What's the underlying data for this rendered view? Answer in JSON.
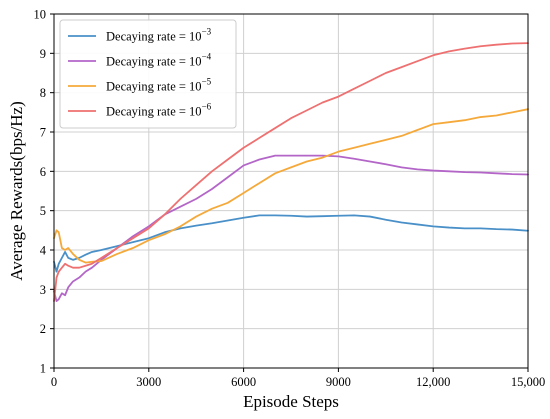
{
  "chart_data": {
    "type": "line",
    "xlabel": "Episode Steps",
    "ylabel": "Average Rewards(bps/Hz)",
    "xlim": [
      0,
      15000
    ],
    "ylim": [
      1,
      10
    ],
    "x_ticks": [
      0,
      3000,
      6000,
      9000,
      12000,
      15000
    ],
    "x_tick_labels": [
      "0",
      "3000",
      "6000",
      "9000",
      "12,000",
      "15,000"
    ],
    "y_ticks": [
      1,
      2,
      3,
      4,
      5,
      6,
      7,
      8,
      9,
      10
    ],
    "y_tick_labels": [
      "1",
      "2",
      "3",
      "4",
      "5",
      "6",
      "7",
      "8",
      "9",
      "10"
    ],
    "grid": true,
    "legend_position": "top-left",
    "series": [
      {
        "name_prefix": "Decaying rate = 10",
        "name_exponent": "−3",
        "color": "#4a90c8",
        "points": [
          [
            0,
            3.7
          ],
          [
            80,
            3.45
          ],
          [
            150,
            3.65
          ],
          [
            250,
            3.8
          ],
          [
            350,
            3.95
          ],
          [
            450,
            3.8
          ],
          [
            600,
            3.75
          ],
          [
            800,
            3.8
          ],
          [
            1000,
            3.88
          ],
          [
            1200,
            3.95
          ],
          [
            1500,
            4.0
          ],
          [
            2000,
            4.1
          ],
          [
            2500,
            4.2
          ],
          [
            3000,
            4.3
          ],
          [
            3500,
            4.45
          ],
          [
            4000,
            4.55
          ],
          [
            4500,
            4.62
          ],
          [
            5000,
            4.68
          ],
          [
            5500,
            4.75
          ],
          [
            6000,
            4.82
          ],
          [
            6500,
            4.88
          ],
          [
            7000,
            4.88
          ],
          [
            7500,
            4.87
          ],
          [
            8000,
            4.85
          ],
          [
            8500,
            4.86
          ],
          [
            9000,
            4.87
          ],
          [
            9500,
            4.88
          ],
          [
            10000,
            4.85
          ],
          [
            10500,
            4.77
          ],
          [
            11000,
            4.7
          ],
          [
            11500,
            4.65
          ],
          [
            12000,
            4.6
          ],
          [
            12500,
            4.57
          ],
          [
            13000,
            4.55
          ],
          [
            13500,
            4.55
          ],
          [
            14000,
            4.53
          ],
          [
            14500,
            4.52
          ],
          [
            15000,
            4.49
          ]
        ]
      },
      {
        "name_prefix": "Decaying rate = 10",
        "name_exponent": "−4",
        "color": "#b366c8",
        "points": [
          [
            0,
            2.95
          ],
          [
            80,
            2.7
          ],
          [
            150,
            2.75
          ],
          [
            250,
            2.9
          ],
          [
            350,
            2.85
          ],
          [
            450,
            3.05
          ],
          [
            600,
            3.2
          ],
          [
            800,
            3.3
          ],
          [
            1000,
            3.45
          ],
          [
            1200,
            3.55
          ],
          [
            1500,
            3.75
          ],
          [
            2000,
            4.05
          ],
          [
            2500,
            4.35
          ],
          [
            3000,
            4.6
          ],
          [
            3500,
            4.9
          ],
          [
            4000,
            5.1
          ],
          [
            4500,
            5.3
          ],
          [
            5000,
            5.55
          ],
          [
            5500,
            5.85
          ],
          [
            6000,
            6.15
          ],
          [
            6500,
            6.3
          ],
          [
            7000,
            6.4
          ],
          [
            7500,
            6.4
          ],
          [
            8000,
            6.4
          ],
          [
            8500,
            6.4
          ],
          [
            9000,
            6.38
          ],
          [
            9500,
            6.32
          ],
          [
            10000,
            6.25
          ],
          [
            10500,
            6.18
          ],
          [
            11000,
            6.1
          ],
          [
            11500,
            6.05
          ],
          [
            12000,
            6.02
          ],
          [
            12500,
            6.0
          ],
          [
            13000,
            5.98
          ],
          [
            13500,
            5.97
          ],
          [
            14000,
            5.95
          ],
          [
            14500,
            5.93
          ],
          [
            15000,
            5.92
          ]
        ]
      },
      {
        "name_prefix": "Decaying rate = 10",
        "name_exponent": "−5",
        "color": "#f5a93a",
        "points": [
          [
            0,
            4.3
          ],
          [
            80,
            4.5
          ],
          [
            150,
            4.45
          ],
          [
            250,
            4.05
          ],
          [
            350,
            4.0
          ],
          [
            450,
            4.05
          ],
          [
            600,
            3.9
          ],
          [
            800,
            3.75
          ],
          [
            1000,
            3.68
          ],
          [
            1200,
            3.7
          ],
          [
            1500,
            3.72
          ],
          [
            2000,
            3.9
          ],
          [
            2500,
            4.05
          ],
          [
            3000,
            4.25
          ],
          [
            3500,
            4.4
          ],
          [
            4000,
            4.6
          ],
          [
            4500,
            4.85
          ],
          [
            5000,
            5.05
          ],
          [
            5500,
            5.2
          ],
          [
            6000,
            5.45
          ],
          [
            6500,
            5.7
          ],
          [
            7000,
            5.95
          ],
          [
            7500,
            6.1
          ],
          [
            8000,
            6.25
          ],
          [
            8500,
            6.35
          ],
          [
            9000,
            6.5
          ],
          [
            9500,
            6.6
          ],
          [
            10000,
            6.7
          ],
          [
            10500,
            6.8
          ],
          [
            11000,
            6.9
          ],
          [
            11500,
            7.05
          ],
          [
            12000,
            7.2
          ],
          [
            12500,
            7.25
          ],
          [
            13000,
            7.3
          ],
          [
            13500,
            7.38
          ],
          [
            14000,
            7.42
          ],
          [
            14500,
            7.5
          ],
          [
            15000,
            7.58
          ]
        ]
      },
      {
        "name_prefix": "Decaying rate = 10",
        "name_exponent": "−6",
        "color": "#ee7070",
        "points": [
          [
            0,
            2.7
          ],
          [
            80,
            3.3
          ],
          [
            150,
            3.45
          ],
          [
            250,
            3.55
          ],
          [
            350,
            3.65
          ],
          [
            450,
            3.6
          ],
          [
            600,
            3.55
          ],
          [
            800,
            3.55
          ],
          [
            1000,
            3.6
          ],
          [
            1200,
            3.65
          ],
          [
            1500,
            3.8
          ],
          [
            2000,
            4.05
          ],
          [
            2500,
            4.3
          ],
          [
            3000,
            4.55
          ],
          [
            3500,
            4.9
          ],
          [
            4000,
            5.3
          ],
          [
            4500,
            5.65
          ],
          [
            5000,
            6.0
          ],
          [
            5500,
            6.3
          ],
          [
            6000,
            6.6
          ],
          [
            6500,
            6.85
          ],
          [
            7000,
            7.1
          ],
          [
            7500,
            7.35
          ],
          [
            8000,
            7.55
          ],
          [
            8500,
            7.75
          ],
          [
            9000,
            7.9
          ],
          [
            9500,
            8.1
          ],
          [
            10000,
            8.3
          ],
          [
            10500,
            8.5
          ],
          [
            11000,
            8.65
          ],
          [
            11500,
            8.8
          ],
          [
            12000,
            8.95
          ],
          [
            12500,
            9.05
          ],
          [
            13000,
            9.12
          ],
          [
            13500,
            9.18
          ],
          [
            14000,
            9.22
          ],
          [
            14500,
            9.25
          ],
          [
            15000,
            9.26
          ]
        ]
      }
    ]
  }
}
